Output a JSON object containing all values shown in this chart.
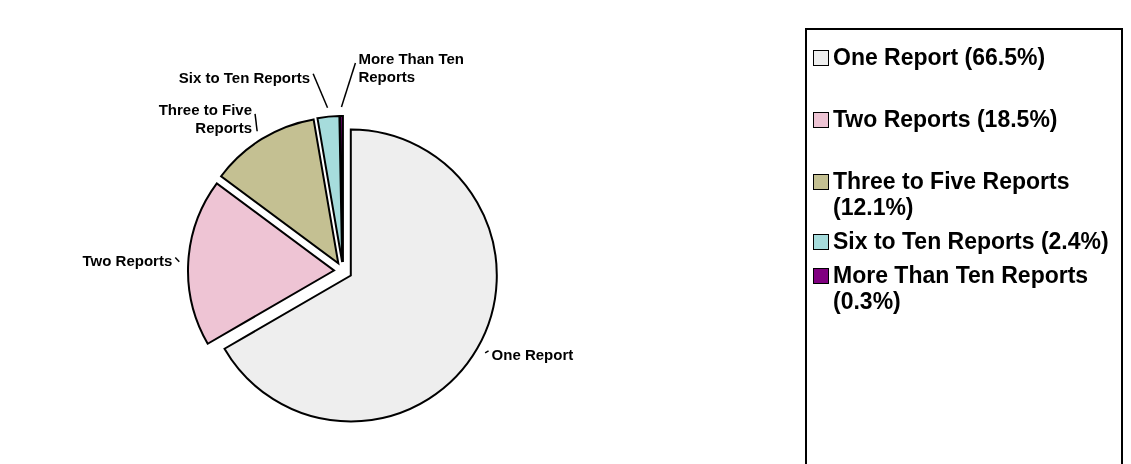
{
  "chart_data": {
    "type": "pie",
    "categories": [
      "One Report",
      "Two Reports",
      "Three to Five Reports",
      "Six to Ten Reports",
      "More Than Ten Reports"
    ],
    "values": [
      66.5,
      18.5,
      12.1,
      2.4,
      0.3
    ],
    "value_labels": [
      "(66.5%)",
      "(18.5%)",
      "(12.1%)",
      "(2.4%)",
      "(0.3%)"
    ],
    "colors": [
      "#eeeeee",
      "#eec4d4",
      "#c4c092",
      "#a6dcdc",
      "#800080"
    ],
    "legend": "right"
  }
}
